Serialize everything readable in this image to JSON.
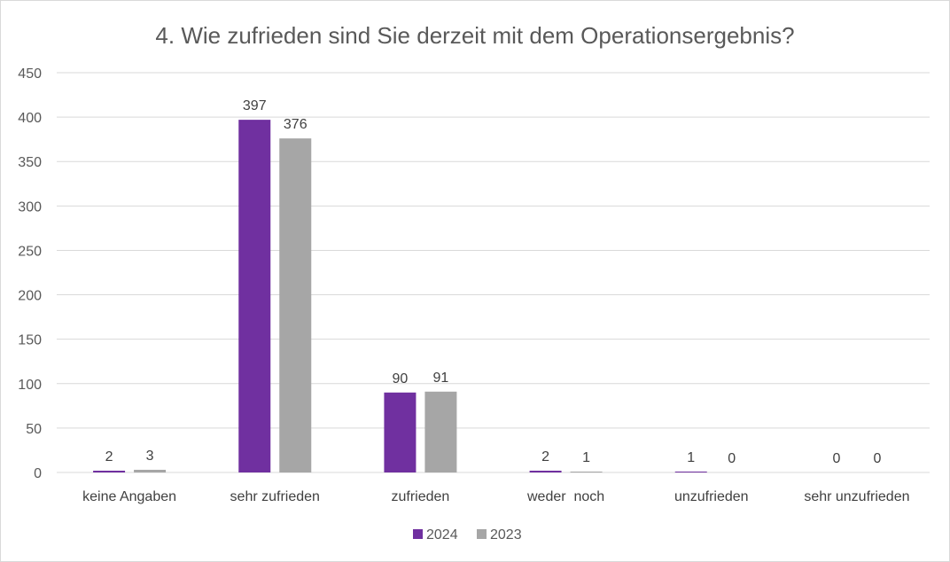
{
  "chart_data": {
    "type": "bar",
    "title": "4. Wie zufrieden sind Sie derzeit mit dem Operationsergebnis?",
    "categories": [
      "keine Angaben",
      "sehr zufrieden",
      "zufrieden",
      "weder  noch",
      "unzufrieden",
      "sehr unzufrieden"
    ],
    "series": [
      {
        "name": "2024",
        "values": [
          2,
          397,
          90,
          2,
          1,
          0
        ],
        "color": "#7030a0"
      },
      {
        "name": "2023",
        "values": [
          3,
          376,
          91,
          1,
          0,
          0
        ],
        "color": "#a6a6a6"
      }
    ],
    "ylim": [
      0,
      450
    ],
    "yticks": [
      0,
      50,
      100,
      150,
      200,
      250,
      300,
      350,
      400,
      450
    ],
    "xlabel": "",
    "ylabel": "",
    "grid": true,
    "legend": "bottom-center"
  }
}
